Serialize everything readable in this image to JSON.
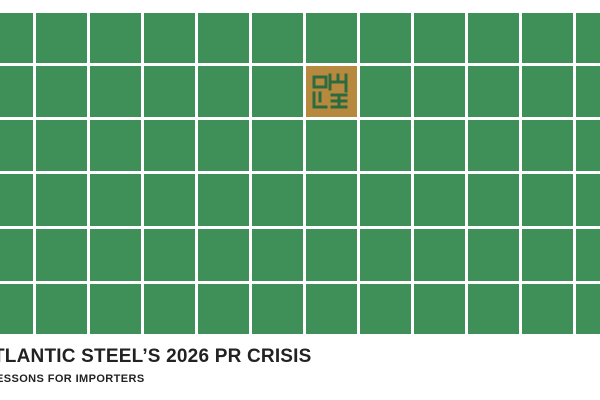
{
  "graphic": {
    "tile_color": "#3f8f59",
    "gridline_color": "#ffffff",
    "accent_tile_color": "#b6893f",
    "emblem_color": "#2c6b3f",
    "emblem_icon": "square-kufic-calligraphy-emblem",
    "accent_tile": {
      "row": 2,
      "col": 6
    }
  },
  "caption": {
    "headline": "TLANTIC STEEL’S 2026 PR CRISIS",
    "subhead": "ESSONS FOR IMPORTERS"
  }
}
